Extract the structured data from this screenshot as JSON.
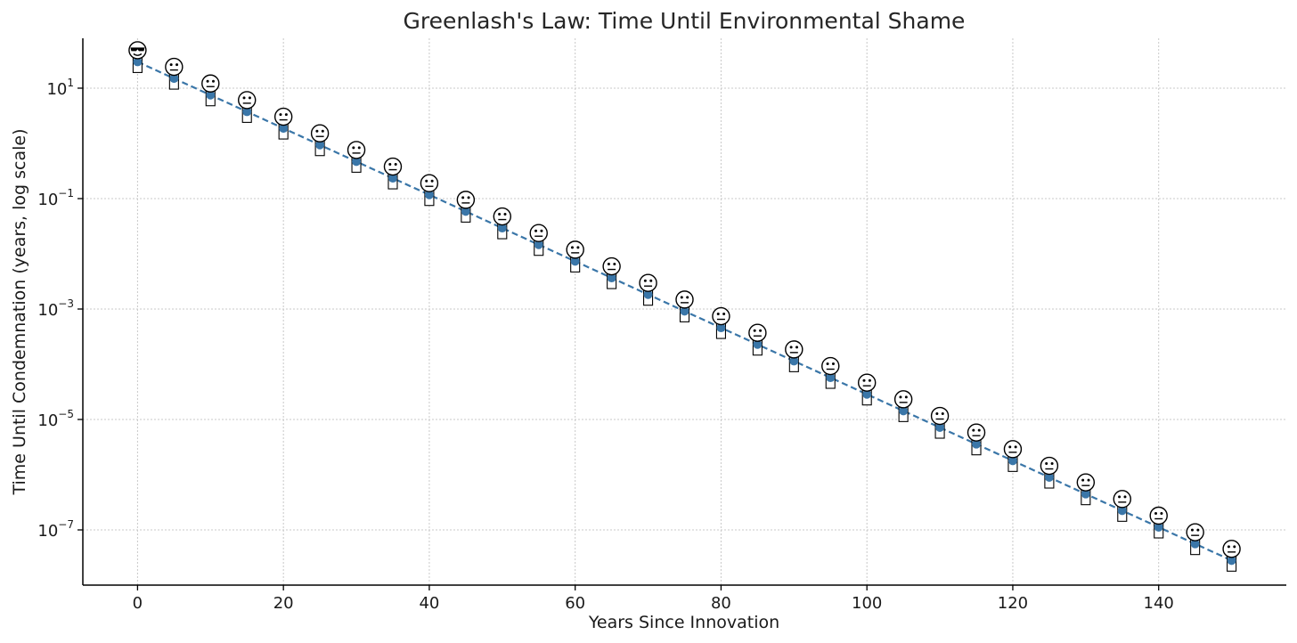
{
  "chart_data": {
    "type": "scatter",
    "title": "Greenlash's Law: Time Until Environmental Shame",
    "xlabel": "Years Since Innovation",
    "ylabel": "Time Until Condemnation (years, log scale)",
    "x_scale": "linear",
    "y_scale": "log",
    "xlim": [
      -7.5,
      157.5
    ],
    "ylim": [
      1e-08,
      80
    ],
    "x_ticks": [
      0,
      20,
      40,
      60,
      80,
      100,
      120,
      140
    ],
    "y_ticks": [
      {
        "value": 10,
        "base": "10",
        "exp": "1"
      },
      {
        "value": 0.1,
        "base": "10",
        "exp": "−1"
      },
      {
        "value": 0.001,
        "base": "10",
        "exp": "−3"
      },
      {
        "value": 1e-05,
        "base": "10",
        "exp": "−5"
      },
      {
        "value": 1e-07,
        "base": "10",
        "exp": "−7"
      }
    ],
    "grid": true,
    "line_style": "dashed",
    "series_color": "#3a76a8",
    "marker_icons": {
      "first": "smiling-face-with-sunglasses-icon",
      "others": "neutral-face-icon",
      "below_marker": "box-glyph-icon"
    },
    "x": [
      0,
      5,
      10,
      15,
      20,
      25,
      30,
      35,
      40,
      45,
      50,
      55,
      60,
      65,
      70,
      75,
      80,
      85,
      90,
      95,
      100,
      105,
      110,
      115,
      120,
      125,
      130,
      135,
      140,
      145,
      150
    ],
    "y": [
      30,
      15,
      7.5,
      3.75,
      1.875,
      0.9375,
      0.46875,
      0.234375,
      0.1171875,
      0.05859375,
      0.029296875,
      0.0146484375,
      0.00732421875,
      0.003662109375,
      0.0018310546875,
      0.00091552734375,
      0.000457763671875,
      0.0002288818359375,
      0.00011444091796875,
      5.7220458984375e-05,
      2.86102294921875e-05,
      1.430511474609375e-05,
      7.152557373046875e-06,
      3.5762786865234375e-06,
      1.7881393432617188e-06,
      8.940696716308594e-07,
      4.470348358154297e-07,
      2.2351741790771484e-07,
      1.1175870895385742e-07,
      5.587935447692871e-08,
      2.7939677238464355e-08
    ]
  }
}
